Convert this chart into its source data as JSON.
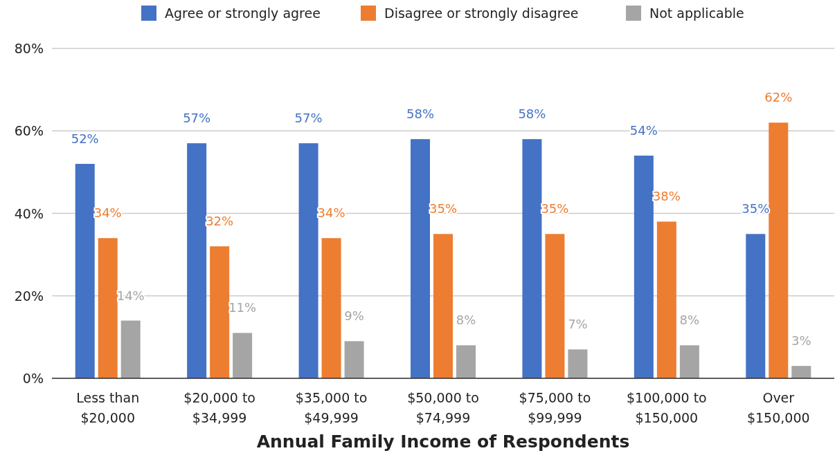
{
  "chart_data": {
    "type": "bar",
    "xlabel": "Annual Family Income of Respondents",
    "categories": [
      "Less than $20,000",
      "$20,000 to $34,999",
      "$35,000 to $49,999",
      "$50,000 to $74,999",
      "$75,000 to $99,999",
      "$100,000 to $150,000",
      "Over $150,000"
    ],
    "series": [
      {
        "name": "Agree or strongly agree",
        "color": "#4472c4",
        "values": [
          52,
          57,
          57,
          58,
          58,
          54,
          35
        ],
        "value_labels": [
          "52%",
          "57%",
          "57%",
          "58%",
          "58%",
          "54%",
          "35%"
        ]
      },
      {
        "name": "Disagree or strongly disagree",
        "color": "#ed7d31",
        "values": [
          34,
          32,
          34,
          35,
          35,
          38,
          62
        ],
        "value_labels": [
          "34%",
          "32%",
          "34%",
          "35%",
          "35%",
          "38%",
          "62%"
        ]
      },
      {
        "name": "Not applicable",
        "color": "#a5a5a5",
        "values": [
          14,
          11,
          9,
          8,
          7,
          8,
          3
        ],
        "value_labels": [
          "14%",
          "11%",
          "9%",
          "8%",
          "7%",
          "8%",
          "3%"
        ]
      }
    ],
    "ylim": [
      0,
      80
    ],
    "yticks": [
      {
        "value": 0,
        "label": "0%"
      },
      {
        "value": 20,
        "label": "20%"
      },
      {
        "value": 40,
        "label": "40%"
      },
      {
        "value": 60,
        "label": "60%"
      },
      {
        "value": 80,
        "label": "80%"
      }
    ],
    "grid": "y",
    "legend": "top"
  }
}
